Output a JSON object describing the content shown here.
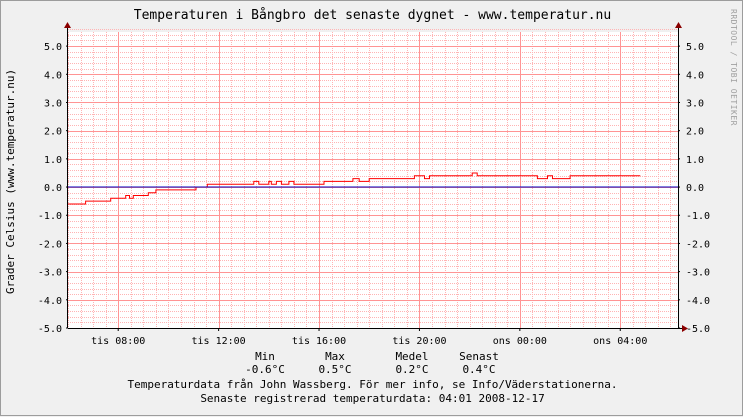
{
  "chart_data": {
    "type": "line",
    "title": "Temperaturen i Bångbro det senaste dygnet - www.temperatur.nu",
    "ylabel": "Grader Celsius (www.temperatur.nu)",
    "xlabel": "",
    "ylim": [
      -5.0,
      5.5
    ],
    "y_ticks": [
      "5.0",
      "4.0",
      "3.0",
      "2.0",
      "1.0",
      "0.0",
      "-1.0",
      "-2.0",
      "-3.0",
      "-4.0",
      "-5.0"
    ],
    "x_range_hours": [
      6.0,
      30.3
    ],
    "x_ticks": [
      {
        "label": "tis 08:00",
        "hour": 8
      },
      {
        "label": "tis 12:00",
        "hour": 12
      },
      {
        "label": "tis 16:00",
        "hour": 16
      },
      {
        "label": "tis 20:00",
        "hour": 20
      },
      {
        "label": "ons 00:00",
        "hour": 24
      },
      {
        "label": "ons 04:00",
        "hour": 28
      }
    ],
    "grid": true,
    "series": [
      {
        "color": "#ff0000",
        "x": [
          6.0,
          6.6,
          6.7,
          7.0,
          7.1,
          7.6,
          7.7,
          8.2,
          8.3,
          8.4,
          8.45,
          8.55,
          8.6,
          8.8,
          8.9,
          9.1,
          9.2,
          9.4,
          9.5,
          10.0,
          10.1,
          10.3,
          10.35,
          10.4,
          10.45,
          10.6,
          10.7,
          11.0,
          11.1,
          11.5,
          11.55,
          11.6,
          11.8,
          11.9,
          12.3,
          12.4,
          13.0,
          13.1,
          13.35,
          13.4,
          13.5,
          13.6,
          13.8,
          14.0,
          14.1,
          14.3,
          14.4,
          14.5,
          14.6,
          14.8,
          15.0,
          15.1,
          15.3,
          15.5,
          15.8,
          16.0,
          16.2,
          16.4,
          16.6,
          17.0,
          17.1,
          17.3,
          17.35,
          17.5,
          17.6,
          18.0,
          18.2,
          18.4,
          18.6,
          19.0,
          19.3,
          19.7,
          19.8,
          20.0,
          20.2,
          20.4,
          20.6,
          21.0,
          21.3,
          21.6,
          21.8,
          22.0,
          22.1,
          22.3,
          22.6,
          22.9,
          23.2,
          23.6,
          24.0,
          24.2,
          24.3,
          24.5,
          24.7,
          24.9,
          25.1,
          25.3,
          25.5,
          25.7,
          26.0,
          26.5,
          27.0,
          27.5,
          28.0,
          28.5,
          28.8
        ],
        "values": [
          -0.6,
          -0.6,
          -0.5,
          -0.5,
          -0.5,
          -0.5,
          -0.4,
          -0.4,
          -0.3,
          -0.3,
          -0.4,
          -0.4,
          -0.3,
          -0.3,
          -0.3,
          -0.3,
          -0.2,
          -0.2,
          -0.1,
          -0.1,
          -0.1,
          -0.1,
          -0.1,
          -0.1,
          -0.1,
          -0.1,
          -0.1,
          -0.1,
          0.0,
          0.0,
          0.1,
          0.1,
          0.1,
          0.1,
          0.1,
          0.1,
          0.1,
          0.1,
          0.1,
          0.2,
          0.2,
          0.1,
          0.1,
          0.2,
          0.1,
          0.2,
          0.2,
          0.1,
          0.1,
          0.2,
          0.1,
          0.1,
          0.1,
          0.1,
          0.1,
          0.1,
          0.2,
          0.2,
          0.2,
          0.2,
          0.2,
          0.2,
          0.3,
          0.3,
          0.2,
          0.3,
          0.3,
          0.3,
          0.3,
          0.3,
          0.3,
          0.3,
          0.4,
          0.4,
          0.3,
          0.4,
          0.4,
          0.4,
          0.4,
          0.4,
          0.4,
          0.4,
          0.5,
          0.4,
          0.4,
          0.4,
          0.4,
          0.4,
          0.4,
          0.4,
          0.4,
          0.4,
          0.3,
          0.3,
          0.4,
          0.3,
          0.3,
          0.3,
          0.4,
          0.4,
          0.4,
          0.4,
          0.4,
          0.4,
          0.4
        ]
      },
      {
        "color": "#0000c0",
        "x": [
          6.0,
          30.3
        ],
        "values": [
          0.0,
          0.0
        ]
      }
    ]
  },
  "stats": [
    {
      "head": "Min",
      "value": "-0.6°C"
    },
    {
      "head": "Max",
      "value": "0.5°C"
    },
    {
      "head": "Medel",
      "value": "0.2°C"
    },
    {
      "head": "Senast",
      "value": "0.4°C"
    }
  ],
  "footer": {
    "line1": "Temperaturdata från John Wassberg. För mer info, se Info/Väderstationerna.",
    "line2": "Senaste registrerad temperaturdata: 04:01 2008-12-17"
  },
  "watermark": "RRDTOOL / TOBI OETIKER",
  "colors": {
    "grid_minor": "#ffb4b4",
    "grid_major": "#ff9494",
    "axis": "#000000"
  }
}
